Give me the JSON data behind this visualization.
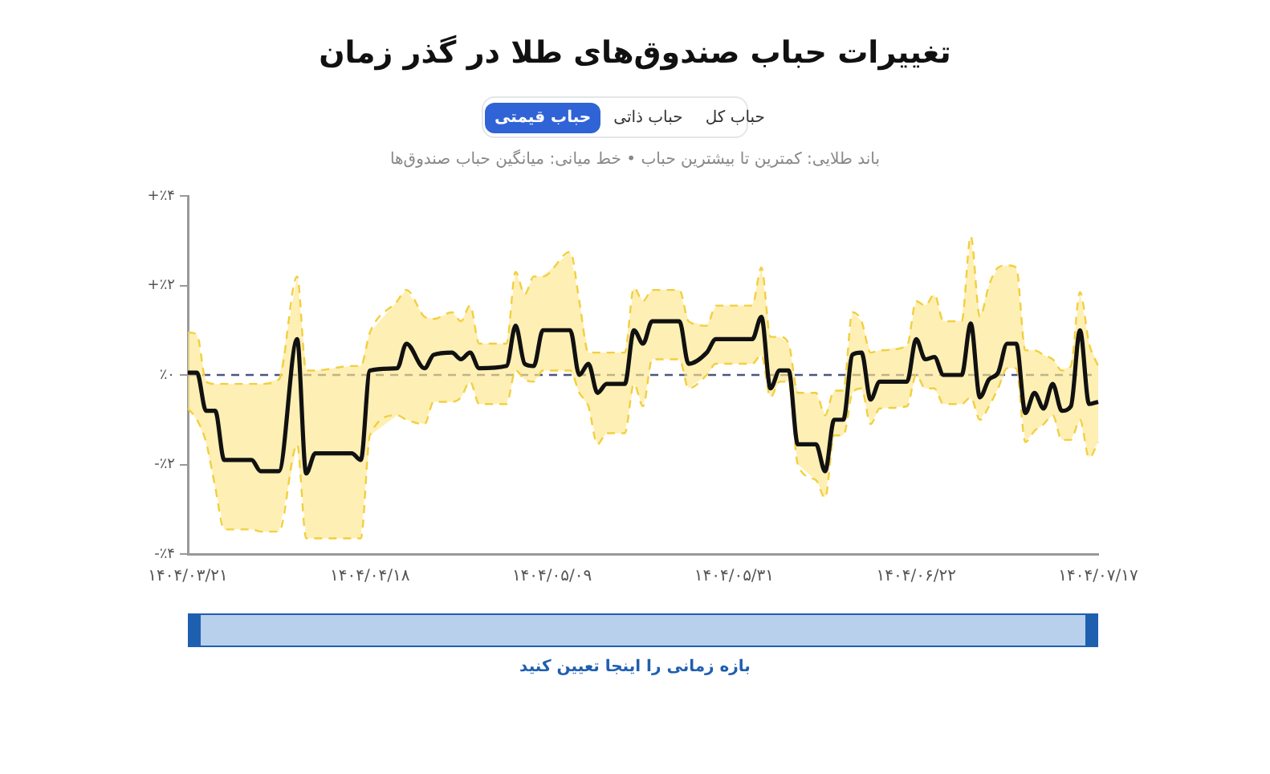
{
  "chart_data": {
    "type": "line",
    "title": "تغییرات حباب صندوق‌های طلا در گذر زمان",
    "subtitle": "باند طلایی: کمترین تا بیشترین حباب • خط میانی: میانگین حباب صندوق‌ها",
    "annotations": [
      "حباب قیمتی",
      "حباب ذاتی",
      "حباب کل",
      "بازه زمانی را اینجا تعیین کنید"
    ],
    "categories": [
      "۱۴۰۴/۰۳/۲۱",
      null,
      null,
      null,
      null,
      null,
      null,
      null,
      null,
      null,
      null,
      null,
      null,
      null,
      null,
      null,
      null,
      null,
      null,
      null,
      "۱۴۰۴/۰۴/۱۸",
      null,
      null,
      null,
      null,
      null,
      null,
      null,
      null,
      null,
      null,
      null,
      null,
      null,
      null,
      null,
      null,
      null,
      null,
      null,
      "۱۴۰۴/۰۵/۰۹",
      null,
      null,
      null,
      null,
      null,
      null,
      null,
      null,
      null,
      null,
      null,
      null,
      null,
      null,
      null,
      null,
      null,
      null,
      null,
      "۱۴۰۴/۰۵/۳۱",
      null,
      null,
      null,
      null,
      null,
      null,
      null,
      null,
      null,
      null,
      null,
      null,
      null,
      null,
      null,
      null,
      null,
      null,
      null,
      "۱۴۰۴/۰۶/۲۲",
      null,
      null,
      null,
      null,
      null,
      null,
      null,
      null,
      null,
      null,
      null,
      null,
      null,
      null,
      null,
      null,
      null,
      null,
      null,
      "۱۴۰۴/۰۷/۱۷"
    ],
    "ylim": [
      -4,
      4
    ],
    "yticks": [
      {
        "value": -4,
        "label": "-٪۴"
      },
      {
        "value": -2,
        "label": "-٪۲"
      },
      {
        "value": 0,
        "label": "٪۰"
      },
      {
        "value": 2,
        "label": "+٪۲"
      },
      {
        "value": 4,
        "label": "+٪۴"
      }
    ],
    "ref_lines": [
      {
        "axis": "y",
        "value": 0,
        "color": "#4a5580",
        "line_style": "dashed"
      }
    ],
    "series": [
      {
        "color": "#111111",
        "values": [
          0.05,
          0.05,
          -0.8,
          -0.8,
          -1.9,
          null,
          null,
          -1.9,
          -2.15,
          null,
          -2.15,
          null,
          0.8,
          -2.2,
          -1.75,
          null,
          null,
          null,
          -1.75,
          -1.9,
          0.1,
          null,
          null,
          0.15,
          0.7,
          null,
          0.15,
          0.45,
          null,
          0.5,
          0.35,
          0.5,
          0.15,
          null,
          null,
          0.2,
          1.1,
          0.25,
          0.2,
          1.0,
          null,
          null,
          1.0,
          0,
          0.25,
          -0.4,
          -0.2,
          null,
          -0.2,
          1.0,
          0.7,
          1.2,
          null,
          null,
          1.2,
          0.25,
          null,
          0.5,
          0.8,
          null,
          null,
          null,
          0.8,
          1.3,
          -0.3,
          0.1,
          0.1,
          -1.55,
          null,
          -1.55,
          -2.15,
          -1.0,
          -1.0,
          0.45,
          0.5,
          -0.55,
          -0.15,
          null,
          null,
          -0.15,
          0.8,
          0.35,
          0.4,
          0,
          null,
          0,
          1.15,
          -0.5,
          -0.1,
          0.05,
          0.7,
          0.7,
          -0.85,
          -0.4,
          -0.75,
          -0.2,
          -0.8,
          -0.7,
          1.0,
          -0.65,
          -0.6
        ],
        "lower": [
          -0.75,
          -1.0,
          -1.5,
          -2.5,
          -3.45,
          null,
          null,
          -3.45,
          -3.5,
          null,
          -3.5,
          null,
          -1.55,
          -3.65,
          -3.65,
          null,
          null,
          null,
          -3.65,
          -3.65,
          -1.35,
          null,
          null,
          -0.9,
          -1.0,
          null,
          -1.1,
          -0.6,
          null,
          -0.6,
          -0.5,
          -0.15,
          -0.65,
          null,
          null,
          -0.65,
          0.1,
          -0.1,
          -0.15,
          0.1,
          null,
          null,
          0.1,
          -0.4,
          -0.7,
          -1.55,
          -1.3,
          null,
          -1.3,
          -0.2,
          -0.7,
          0.35,
          null,
          null,
          0.35,
          -0.3,
          null,
          0,
          0.25,
          null,
          null,
          null,
          0.25,
          0.45,
          -0.5,
          -0.15,
          -0.15,
          -2.0,
          null,
          -2.35,
          -2.75,
          -1.35,
          -1.35,
          -0.4,
          -0.3,
          -1.1,
          -0.75,
          null,
          null,
          -0.7,
          0,
          -0.3,
          -0.3,
          -0.65,
          null,
          -0.65,
          -0.5,
          -1.0,
          -0.7,
          -0.3,
          0.15,
          0.15,
          -1.5,
          -1.25,
          -1.1,
          -0.9,
          -1.45,
          -1.45,
          -1.0,
          -1.85,
          -1.5
        ],
        "upper": [
          0.95,
          0.9,
          -0.15,
          -0.2,
          -0.2,
          null,
          null,
          -0.2,
          -0.2,
          null,
          -0.1,
          null,
          2.2,
          0.1,
          0.1,
          null,
          null,
          null,
          0.2,
          0.2,
          0.95,
          null,
          null,
          1.65,
          1.9,
          null,
          1.3,
          1.25,
          null,
          1.4,
          1.2,
          1.55,
          0.7,
          null,
          null,
          0.7,
          2.3,
          1.8,
          2.2,
          2.2,
          null,
          null,
          2.75,
          1.65,
          0.5,
          0.5,
          0.5,
          null,
          0.5,
          1.95,
          1.65,
          1.9,
          null,
          null,
          1.9,
          1.2,
          null,
          1.1,
          1.55,
          null,
          null,
          null,
          1.55,
          2.4,
          0.85,
          0.85,
          0.7,
          -0.4,
          null,
          -0.4,
          -0.9,
          -0.35,
          -0.35,
          1.4,
          1.2,
          0.5,
          0.55,
          null,
          null,
          0.65,
          1.65,
          1.55,
          1.8,
          1.2,
          null,
          1.2,
          3.1,
          1.3,
          2.0,
          2.4,
          2.45,
          2.4,
          0.55,
          0.55,
          0.45,
          0.35,
          0.1,
          0.2,
          1.85,
          0.7,
          0.2
        ]
      },
      {
        "color": "#f2cf3f",
        "line_style": "dashed",
        "values": [
          -0.75,
          -1.0,
          -1.5,
          -2.5,
          -3.45,
          null,
          null,
          -3.45,
          -3.5,
          null,
          -3.5,
          null,
          -1.55,
          -3.65,
          -3.65,
          null,
          null,
          null,
          -3.65,
          -3.65,
          -1.35,
          null,
          null,
          -0.9,
          -1.0,
          null,
          -1.1,
          -0.6,
          null,
          -0.6,
          -0.5,
          -0.15,
          -0.65,
          null,
          null,
          -0.65,
          0.1,
          -0.1,
          -0.15,
          0.1,
          null,
          null,
          0.1,
          -0.4,
          -0.7,
          -1.55,
          -1.3,
          null,
          -1.3,
          -0.2,
          -0.7,
          0.35,
          null,
          null,
          0.35,
          -0.3,
          null,
          0,
          0.25,
          null,
          null,
          null,
          0.25,
          0.45,
          -0.5,
          -0.15,
          -0.15,
          -2.0,
          null,
          -2.35,
          -2.75,
          -1.35,
          -1.35,
          -0.4,
          -0.3,
          -1.1,
          -0.75,
          null,
          null,
          -0.7,
          0,
          -0.3,
          -0.3,
          -0.65,
          null,
          -0.65,
          -0.5,
          -1.0,
          -0.7,
          -0.3,
          0.15,
          0.15,
          -1.5,
          -1.25,
          -1.1,
          -0.9,
          -1.45,
          -1.45,
          -1.0,
          -1.85,
          -1.5
        ]
      },
      {
        "color": "#f2cf3f",
        "line_style": "dashed",
        "values": [
          0.95,
          0.9,
          -0.15,
          -0.2,
          -0.2,
          null,
          null,
          -0.2,
          -0.2,
          null,
          -0.1,
          null,
          2.2,
          0.1,
          0.1,
          null,
          null,
          null,
          0.2,
          0.2,
          0.95,
          null,
          null,
          1.65,
          1.9,
          null,
          1.3,
          1.25,
          null,
          1.4,
          1.2,
          1.55,
          0.7,
          null,
          null,
          0.7,
          2.3,
          1.8,
          2.2,
          2.2,
          null,
          null,
          2.75,
          1.65,
          0.5,
          0.5,
          0.5,
          null,
          0.5,
          1.95,
          1.65,
          1.9,
          null,
          null,
          1.9,
          1.2,
          null,
          1.1,
          1.55,
          null,
          null,
          null,
          1.55,
          2.4,
          0.85,
          0.85,
          0.7,
          -0.4,
          null,
          -0.4,
          -0.9,
          -0.35,
          -0.35,
          1.4,
          1.2,
          0.5,
          0.55,
          null,
          null,
          0.65,
          1.65,
          1.55,
          1.8,
          1.2,
          null,
          1.2,
          3.1,
          1.3,
          2.0,
          2.4,
          2.45,
          2.4,
          0.55,
          0.55,
          0.45,
          0.35,
          0.1,
          0.2,
          1.85,
          0.7,
          0.2
        ]
      }
    ]
  }
}
